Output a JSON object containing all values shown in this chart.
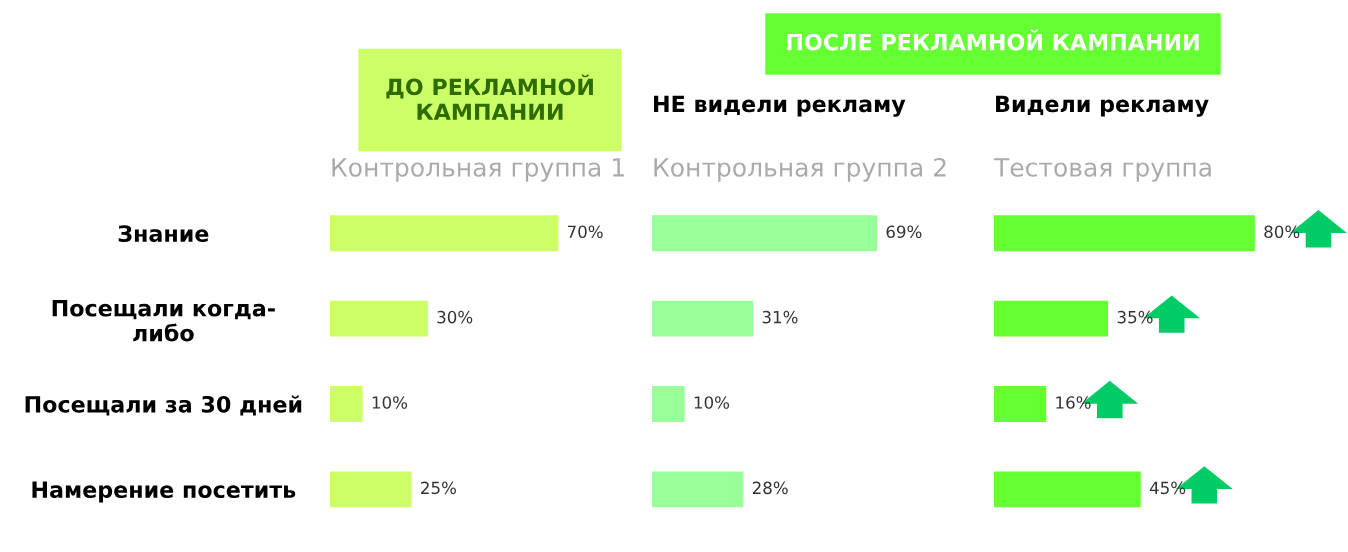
{
  "chart_data": [
    {
      "type": "bar",
      "orientation": "horizontal",
      "title": "Контрольная группа 1",
      "annotations": [
        "ДО РЕКЛАМНОЙ КАМПАНИИ"
      ],
      "categories": [
        "Знание",
        "Посещали когда-либо",
        "Посещали за 30 дней",
        "Намерение посетить"
      ],
      "values": [
        70,
        30,
        10,
        25
      ],
      "value_labels": [
        "70%",
        "30%",
        "10%",
        "25%"
      ],
      "color": "#ccff66",
      "tick_labels": "y"
    },
    {
      "type": "bar",
      "orientation": "horizontal",
      "title": "Контрольная группа 2",
      "subtitle": "НЕ видели рекламу",
      "annotations": [
        "ПОСЛЕ РЕКЛАМНОЙ КАМПАНИИ"
      ],
      "categories": [
        null,
        null,
        null,
        null
      ],
      "values": [
        69,
        31,
        10,
        28
      ],
      "value_labels": [
        "69%",
        "31%",
        "10%",
        "28%"
      ],
      "color": "#99ff99"
    },
    {
      "type": "bar",
      "orientation": "horizontal",
      "title": "Тестовая группа",
      "subtitle": "Видели рекламу",
      "categories": [
        null,
        null,
        null,
        null
      ],
      "values": [
        80,
        35,
        16,
        45
      ],
      "value_labels": [
        "80%",
        "35%",
        "16%",
        "45%"
      ],
      "color": "#66ff33"
    }
  ]
}
